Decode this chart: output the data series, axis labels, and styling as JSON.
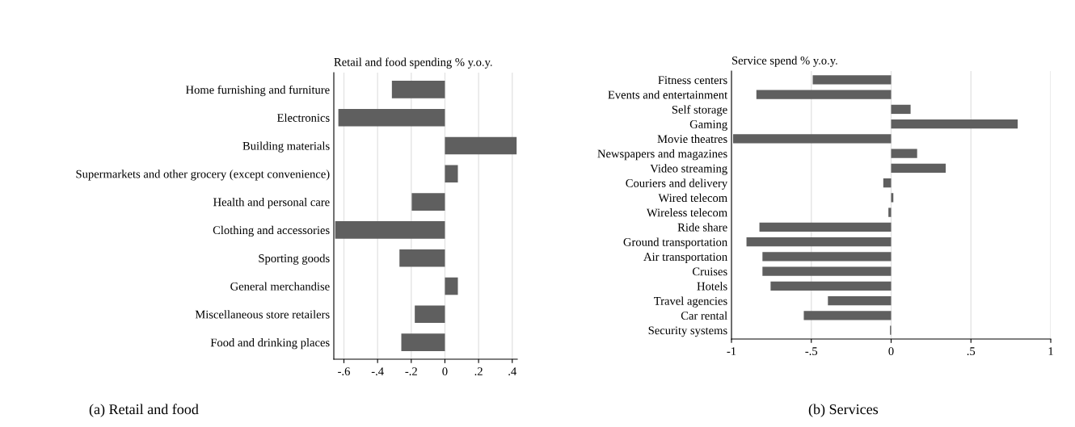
{
  "chart_data": [
    {
      "type": "bar",
      "orientation": "horizontal",
      "title": "Retail and food spending % y.o.y.",
      "categories": [
        "Home furnishing and furniture",
        "Electronics",
        "Building materials",
        "Supermarkets and other grocery (except convenience)",
        "Health and personal care",
        "Clothing and accessories",
        "Sporting goods",
        "General merchandise",
        "Miscellaneous store retailers",
        "Food and drinking places"
      ],
      "values": [
        -0.315,
        -0.633,
        0.426,
        0.077,
        -0.197,
        -0.652,
        -0.27,
        0.077,
        -0.179,
        -0.259
      ],
      "color": "#5f5f5f",
      "xlim": [
        -0.66,
        0.43
      ],
      "xticks": [
        {
          "value": -0.6,
          "label": "-.6"
        },
        {
          "value": -0.4,
          "label": "-.4"
        },
        {
          "value": -0.2,
          "label": "-.2"
        },
        0,
        {
          "value": 0.2,
          "label": ".2"
        },
        {
          "value": 0.4,
          "label": ".4"
        }
      ],
      "grid": "x",
      "annotations": [
        "(a) Retail and food"
      ]
    },
    {
      "type": "bar",
      "orientation": "horizontal",
      "title": "Service spend % y.o.y.",
      "categories": [
        "Fitness centers",
        "Events and entertainment",
        "Self storage",
        "Gaming",
        "Movie theatres",
        "Newspapers and magazines",
        "Video streaming",
        "Couriers and delivery",
        "Wired telecom",
        "Wireless telecom",
        "Ride share",
        "Ground transportation",
        "Air transportation",
        "Cruises",
        "Hotels",
        "Travel agencies",
        "Car rental",
        "Security systems"
      ],
      "values": [
        -0.491,
        -0.844,
        0.122,
        0.793,
        -0.99,
        0.163,
        0.342,
        -0.049,
        0.014,
        -0.017,
        -0.825,
        -0.906,
        -0.806,
        -0.806,
        -0.755,
        -0.396,
        -0.547,
        -0.007
      ],
      "color": "#5f5f5f",
      "xlim": [
        -1,
        1
      ],
      "xticks": [
        -1,
        {
          "value": -0.5,
          "label": "-.5"
        },
        0,
        {
          "value": 0.5,
          "label": ".5"
        },
        1
      ],
      "grid": "x",
      "annotations": [
        "(b) Services"
      ]
    }
  ]
}
